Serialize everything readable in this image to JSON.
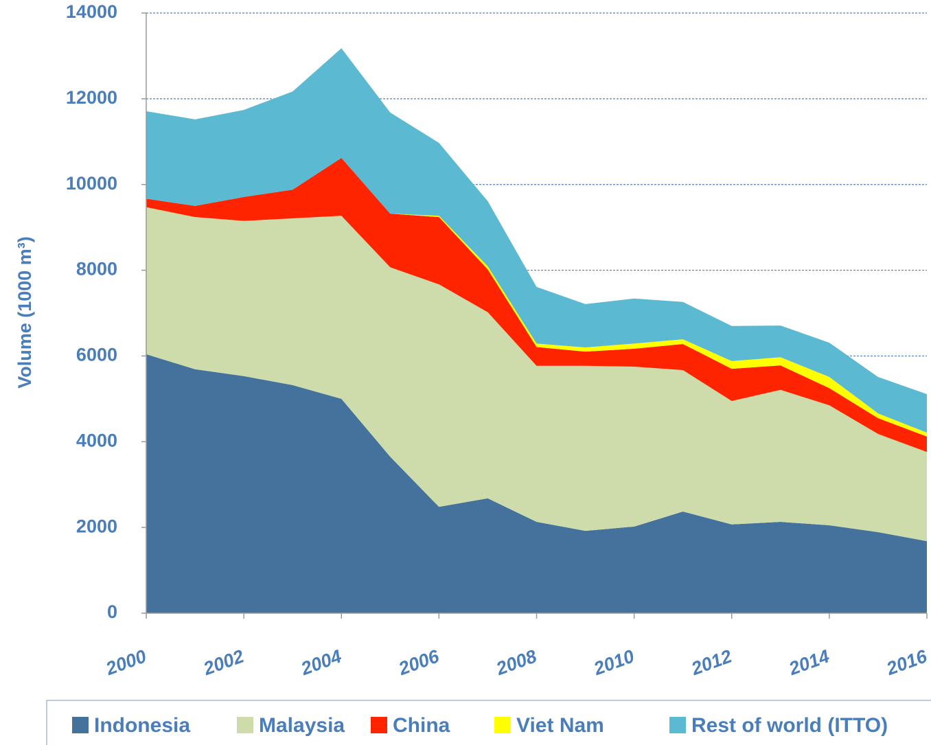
{
  "chart_data": {
    "type": "stacked_area",
    "y_label": "Volume (1000 m³)",
    "x": [
      2000,
      2001,
      2002,
      2003,
      2004,
      2005,
      2006,
      2007,
      2008,
      2009,
      2010,
      2011,
      2012,
      2013,
      2014,
      2015,
      2016
    ],
    "xlim": [
      2000,
      2016
    ],
    "xticks": [
      2000,
      2002,
      2004,
      2006,
      2008,
      2010,
      2012,
      2014,
      2016
    ],
    "ylim": [
      0,
      14000
    ],
    "yticks": [
      0,
      2000,
      4000,
      6000,
      8000,
      10000,
      12000,
      14000
    ],
    "grid": true,
    "legend": "bottom",
    "series": [
      {
        "name": "Indonesia",
        "color": "#44729d",
        "values": [
          6040,
          5690,
          5530,
          5320,
          5000,
          3650,
          2480,
          2680,
          2130,
          1920,
          2020,
          2370,
          2070,
          2130,
          2050,
          1890,
          1680
        ]
      },
      {
        "name": "Malaysia",
        "color": "#cddcaa",
        "values": [
          3430,
          3550,
          3620,
          3890,
          4270,
          4420,
          5190,
          4340,
          3640,
          3850,
          3730,
          3300,
          2880,
          3080,
          2800,
          2290,
          2080
        ]
      },
      {
        "name": "China",
        "color": "#ff2400",
        "values": [
          200,
          260,
          560,
          670,
          1350,
          1250,
          1570,
          1000,
          440,
          330,
          420,
          610,
          750,
          570,
          400,
          370,
          360
        ]
      },
      {
        "name": "Viet Nam",
        "color": "#ffff00",
        "values": [
          0,
          0,
          0,
          0,
          0,
          0,
          30,
          70,
          80,
          100,
          120,
          110,
          180,
          190,
          260,
          110,
          90
        ]
      },
      {
        "name": "Rest of world (ITTO)",
        "color": "#5bb9d1",
        "values": [
          2040,
          2020,
          2030,
          2290,
          2560,
          2360,
          1700,
          1520,
          1320,
          1010,
          1050,
          870,
          820,
          740,
          800,
          850,
          900
        ]
      }
    ]
  }
}
